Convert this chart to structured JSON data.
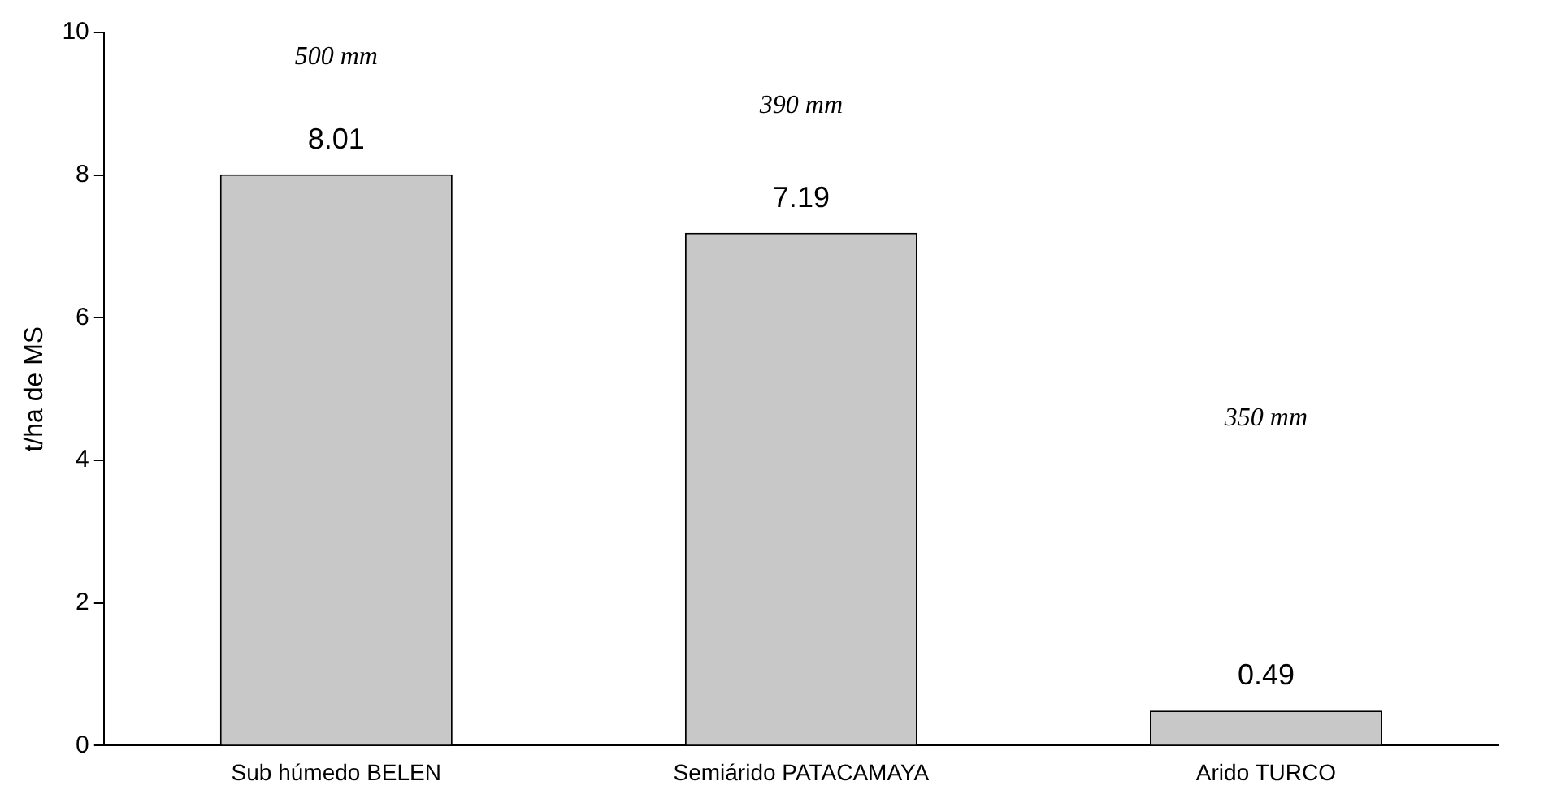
{
  "chart_data": {
    "type": "bar",
    "ylabel": "t/ha de MS",
    "categories": [
      "Sub húmedo BELEN",
      "Semiárido PATACAMAYA",
      "Arido TURCO"
    ],
    "values": [
      8.01,
      7.19,
      0.49
    ],
    "color": "#c8c8c8",
    "ylim": [
      0,
      10
    ],
    "yticks": [
      0,
      2,
      4,
      6,
      8,
      10
    ],
    "grid": false,
    "data_labels": true,
    "annotations": [
      "500 mm",
      "390 mm",
      "350 mm"
    ]
  }
}
